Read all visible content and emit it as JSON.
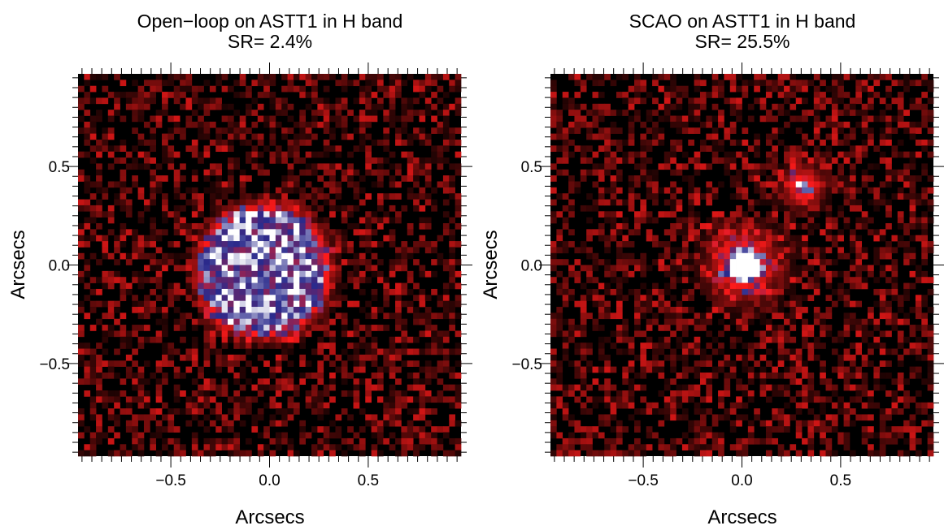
{
  "chart_data": [
    {
      "type": "heatmap",
      "title_line1": "Open−loop on ASTT1 in H band",
      "title_line2": "SR= 2.4%",
      "xlabel": "Arcsecs",
      "ylabel": "Arcsecs",
      "xlim": [
        -0.97,
        0.97
      ],
      "ylim": [
        -0.97,
        0.97
      ],
      "major_ticks": [
        -0.5,
        0.0,
        0.5
      ],
      "tick_labels": [
        "−0.5",
        "0.0",
        "0.5"
      ],
      "colormap": [
        "#000000",
        "#ff1a1a",
        "#2a2a8c",
        "#ffffff"
      ],
      "sources": [
        {
          "x": -0.03,
          "y": -0.03,
          "sigma": 0.19,
          "peak": 0.8,
          "kind": "halo"
        }
      ],
      "background_noise": 0.45,
      "seed": 7
    },
    {
      "type": "heatmap",
      "title_line1": "SCAO on ASTT1 in H band",
      "title_line2": "SR= 25.5%",
      "xlabel": "Arcsecs",
      "ylabel": "Arcsecs",
      "xlim": [
        -0.97,
        0.97
      ],
      "ylim": [
        -0.97,
        0.97
      ],
      "major_ticks": [
        -0.5,
        0.0,
        0.5
      ],
      "tick_labels": [
        "−0.5",
        "0.0",
        "0.5"
      ],
      "colormap": [
        "#000000",
        "#ff1a1a",
        "#2a2a8c",
        "#ffffff"
      ],
      "sources": [
        {
          "x": 0.01,
          "y": 0.0,
          "sigma": 0.09,
          "peak": 1.0,
          "kind": "core"
        },
        {
          "x": 0.31,
          "y": 0.4,
          "sigma": 0.07,
          "peak": 0.62,
          "kind": "companion"
        }
      ],
      "background_noise": 0.45,
      "seed": 19
    }
  ]
}
